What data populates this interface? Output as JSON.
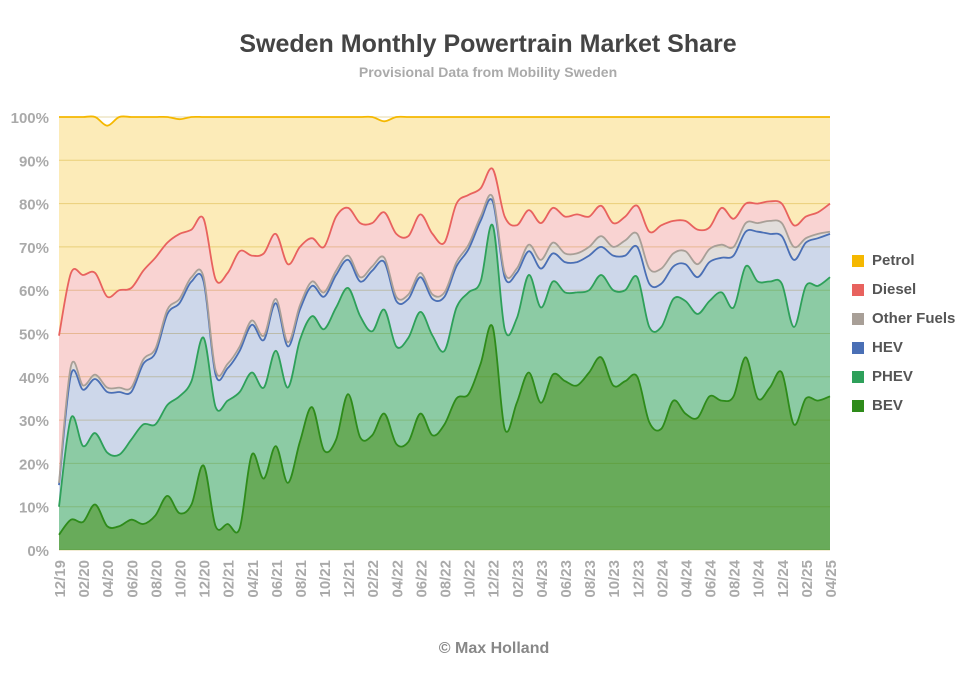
{
  "title": "Sweden Monthly Powertrain Market Share",
  "subtitle": "Provisional Data from Mobility Sweden",
  "credit": "© Max Holland",
  "chart_data": {
    "type": "area",
    "stacked": true,
    "title": "Sweden Monthly Powertrain Market Share",
    "subtitle": "Provisional Data from Mobility Sweden",
    "xlabel": "",
    "ylabel": "",
    "ylim": [
      0,
      100
    ],
    "y_ticks": [
      "0%",
      "10%",
      "20%",
      "30%",
      "40%",
      "50%",
      "60%",
      "70%",
      "80%",
      "90%",
      "100%"
    ],
    "x_tick_labels": [
      "12/19",
      "02/20",
      "04/20",
      "06/20",
      "08/20",
      "10/20",
      "12/20",
      "02/21",
      "04/21",
      "06/21",
      "08/21",
      "10/21",
      "12/21",
      "02/22",
      "04/22",
      "06/22",
      "08/22",
      "10/22",
      "12/22",
      "02/23",
      "04/23",
      "06/23",
      "08/23",
      "10/23",
      "12/23",
      "02/24",
      "04/24",
      "06/24",
      "08/24",
      "10/24",
      "12/24",
      "02/25",
      "04/25"
    ],
    "x": [
      "12/19",
      "01/20",
      "02/20",
      "03/20",
      "04/20",
      "05/20",
      "06/20",
      "07/20",
      "08/20",
      "09/20",
      "10/20",
      "11/20",
      "12/20",
      "01/21",
      "02/21",
      "03/21",
      "04/21",
      "05/21",
      "06/21",
      "07/21",
      "08/21",
      "09/21",
      "10/21",
      "11/21",
      "12/21",
      "01/22",
      "02/22",
      "03/22",
      "04/22",
      "05/22",
      "06/22",
      "07/22",
      "08/22",
      "09/22",
      "10/22",
      "11/22",
      "12/22",
      "01/23",
      "02/23",
      "03/23",
      "04/23",
      "05/23",
      "06/23",
      "07/23",
      "08/23",
      "09/23",
      "10/23",
      "11/23",
      "12/23",
      "01/24",
      "02/24",
      "03/24",
      "04/24",
      "05/24",
      "06/24",
      "07/24",
      "08/24",
      "09/24",
      "10/24",
      "11/24",
      "12/24",
      "01/25",
      "02/25",
      "03/25",
      "04/25"
    ],
    "grid": true,
    "legend_position": "right",
    "series": [
      {
        "name": "BEV",
        "color": "#2e8b1a",
        "values": [
          3.5,
          7,
          6.5,
          10.5,
          5.5,
          5.5,
          7,
          6,
          8,
          12.5,
          8.5,
          10.5,
          19.5,
          5.5,
          6,
          5,
          22,
          16.5,
          24,
          15.5,
          25,
          33,
          23,
          25.5,
          36,
          26,
          26.5,
          31.5,
          24.5,
          25,
          31.5,
          26.5,
          29,
          35,
          36,
          43,
          51.5,
          28,
          34,
          41,
          34,
          40.5,
          39,
          38,
          41,
          44.5,
          38,
          39,
          40,
          29.5,
          28,
          34.5,
          31.5,
          30.5,
          35.5,
          34.5,
          35.5,
          44.5,
          35,
          37.5,
          41,
          29,
          35,
          34.5,
          35.5
        ]
      },
      {
        "name": "PHEV",
        "color": "#2ea05a",
        "values": [
          6.5,
          23.5,
          17.5,
          16.5,
          17,
          16.5,
          18.5,
          23,
          21,
          21,
          27,
          28.5,
          29.5,
          27.5,
          28.5,
          31.5,
          19,
          21,
          22,
          22,
          23.5,
          21,
          28,
          30.5,
          24.5,
          28,
          24,
          24,
          22.5,
          24,
          23.5,
          23,
          17,
          21,
          23.5,
          19,
          23.5,
          23,
          19.5,
          22.5,
          22,
          21.5,
          20.5,
          21.5,
          19,
          19,
          22,
          21,
          23,
          22,
          23.5,
          23.5,
          26,
          24,
          22,
          25,
          20.5,
          21,
          27,
          24.5,
          20.5,
          22.5,
          26,
          26.5,
          27.5
        ]
      },
      {
        "name": "HEV",
        "color": "#4a6fb5",
        "values": [
          5,
          10,
          13,
          12.5,
          14,
          14.5,
          11,
          14,
          16.5,
          21,
          21.5,
          23,
          13,
          7.5,
          7.5,
          9.5,
          11,
          11,
          11,
          9.5,
          7,
          7,
          7.5,
          7.5,
          6.5,
          8,
          14,
          11,
          10.5,
          9,
          8,
          8.5,
          12.5,
          9.5,
          10,
          14,
          5.5,
          12,
          10.5,
          5.5,
          9,
          6.5,
          7,
          7,
          8,
          6.5,
          8,
          8,
          7,
          10,
          10,
          7.5,
          8.5,
          8.5,
          9,
          8,
          12,
          8,
          11.5,
          11,
          11,
          15.5,
          10,
          11,
          10
        ]
      },
      {
        "name": "Other Fuels",
        "color": "#a89f97",
        "values": [
          0.5,
          2,
          1,
          1,
          1,
          1,
          1,
          1,
          1,
          1,
          1,
          1,
          1,
          1,
          1,
          1,
          1,
          1,
          1,
          1,
          1,
          1,
          1,
          1,
          1,
          1,
          1,
          1,
          1,
          1,
          1,
          1,
          1,
          1,
          1,
          1,
          1,
          1,
          1,
          1.5,
          2,
          2.5,
          2,
          2,
          2,
          2.5,
          2,
          3.5,
          3,
          3.5,
          3.5,
          3,
          3,
          3,
          3,
          3,
          2,
          2,
          2,
          3,
          3,
          3,
          1,
          1,
          0.5
        ]
      },
      {
        "name": "Diesel",
        "color": "#e8625e",
        "values": [
          34,
          21.5,
          25.5,
          23.5,
          21,
          22.5,
          23,
          20.5,
          21,
          15.5,
          15,
          11,
          13.5,
          21,
          21,
          22,
          15,
          19,
          15,
          18,
          13.5,
          10,
          10.5,
          12.5,
          11,
          12.5,
          10,
          10.5,
          14.5,
          13.5,
          13.5,
          14,
          11.5,
          13.5,
          11.5,
          6.5,
          6.5,
          13,
          10,
          8,
          8.5,
          8,
          8.5,
          9,
          7,
          7,
          5.5,
          5.5,
          6.5,
          8.5,
          10,
          7.5,
          7,
          8,
          5,
          8.5,
          6.5,
          4.5,
          4.5,
          4.5,
          4.5,
          5,
          5,
          5,
          6.5
        ]
      },
      {
        "name": "Petrol",
        "color": "#f5b800",
        "values": [
          50.5,
          36,
          36.5,
          36,
          39.5,
          40,
          39.5,
          35.5,
          32.5,
          29,
          26.5,
          26,
          23.5,
          37.5,
          36,
          31,
          32,
          31.5,
          27,
          34,
          30,
          28,
          30,
          23,
          21,
          24.5,
          24.5,
          21,
          27,
          27.5,
          22.5,
          27,
          29,
          20,
          18,
          16.5,
          12,
          23,
          25,
          21.5,
          24.5,
          21,
          23,
          22.5,
          23,
          20.5,
          24.5,
          23,
          20.5,
          26.5,
          25,
          24,
          24,
          26,
          25.5,
          21,
          23.5,
          20,
          20,
          19.5,
          20,
          25,
          23,
          22,
          20
        ]
      }
    ]
  }
}
